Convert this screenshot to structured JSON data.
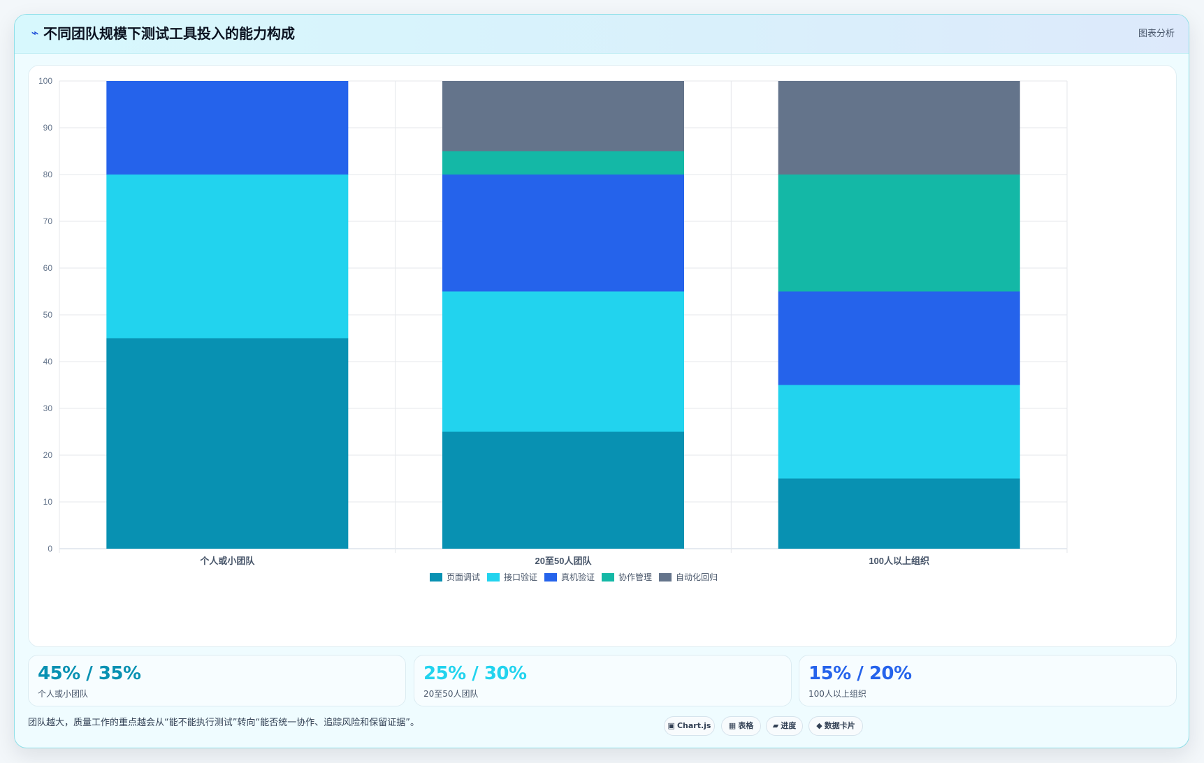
{
  "header": {
    "icon": "activity-icon",
    "title": "不同团队规模下测试工具投入的能力构成",
    "tag": "图表分析"
  },
  "chart_data": {
    "type": "bar",
    "stacked": true,
    "title": "",
    "xlabel": "",
    "ylabel": "",
    "categories": [
      "个人或小团队",
      "20至50人团队",
      "100人以上组织"
    ],
    "ylim": [
      0,
      100
    ],
    "yticks": [
      0,
      10,
      20,
      30,
      40,
      50,
      60,
      70,
      80,
      90,
      100
    ],
    "grid": true,
    "legend_position": "bottom-center",
    "series": [
      {
        "name": "页面调试",
        "color": "#0891b2",
        "values": [
          45,
          25,
          15
        ]
      },
      {
        "name": "接口验证",
        "color": "#22d3ee",
        "values": [
          35,
          30,
          20
        ]
      },
      {
        "name": "真机验证",
        "color": "#2563eb",
        "values": [
          20,
          25,
          20
        ]
      },
      {
        "name": "协作管理",
        "color": "#14b8a6",
        "values": [
          0,
          5,
          25
        ]
      },
      {
        "name": "自动化回归",
        "color": "#64748b",
        "values": [
          0,
          15,
          20
        ]
      }
    ]
  },
  "stats": [
    {
      "value": "45% / 35%",
      "label": "个人或小团队",
      "color": "#0891b2"
    },
    {
      "value": "25% / 30%",
      "label": "20至50人团队",
      "color": "#22d3ee"
    },
    {
      "value": "15% / 20%",
      "label": "100人以上组织",
      "color": "#2563eb"
    }
  ],
  "footnote": "团队越大，质量工作的重点越会从“能不能执行测试”转向“能否统一协作、追踪风险和保留证据”。",
  "chips": [
    {
      "glyph": "▣",
      "icon": "chart-icon",
      "label": "Chart.js"
    },
    {
      "glyph": "▦",
      "icon": "table-icon",
      "label": "表格"
    },
    {
      "glyph": "▰",
      "icon": "progress-icon",
      "label": "进度"
    },
    {
      "glyph": "◆",
      "icon": "card-icon",
      "label": "数据卡片"
    }
  ]
}
